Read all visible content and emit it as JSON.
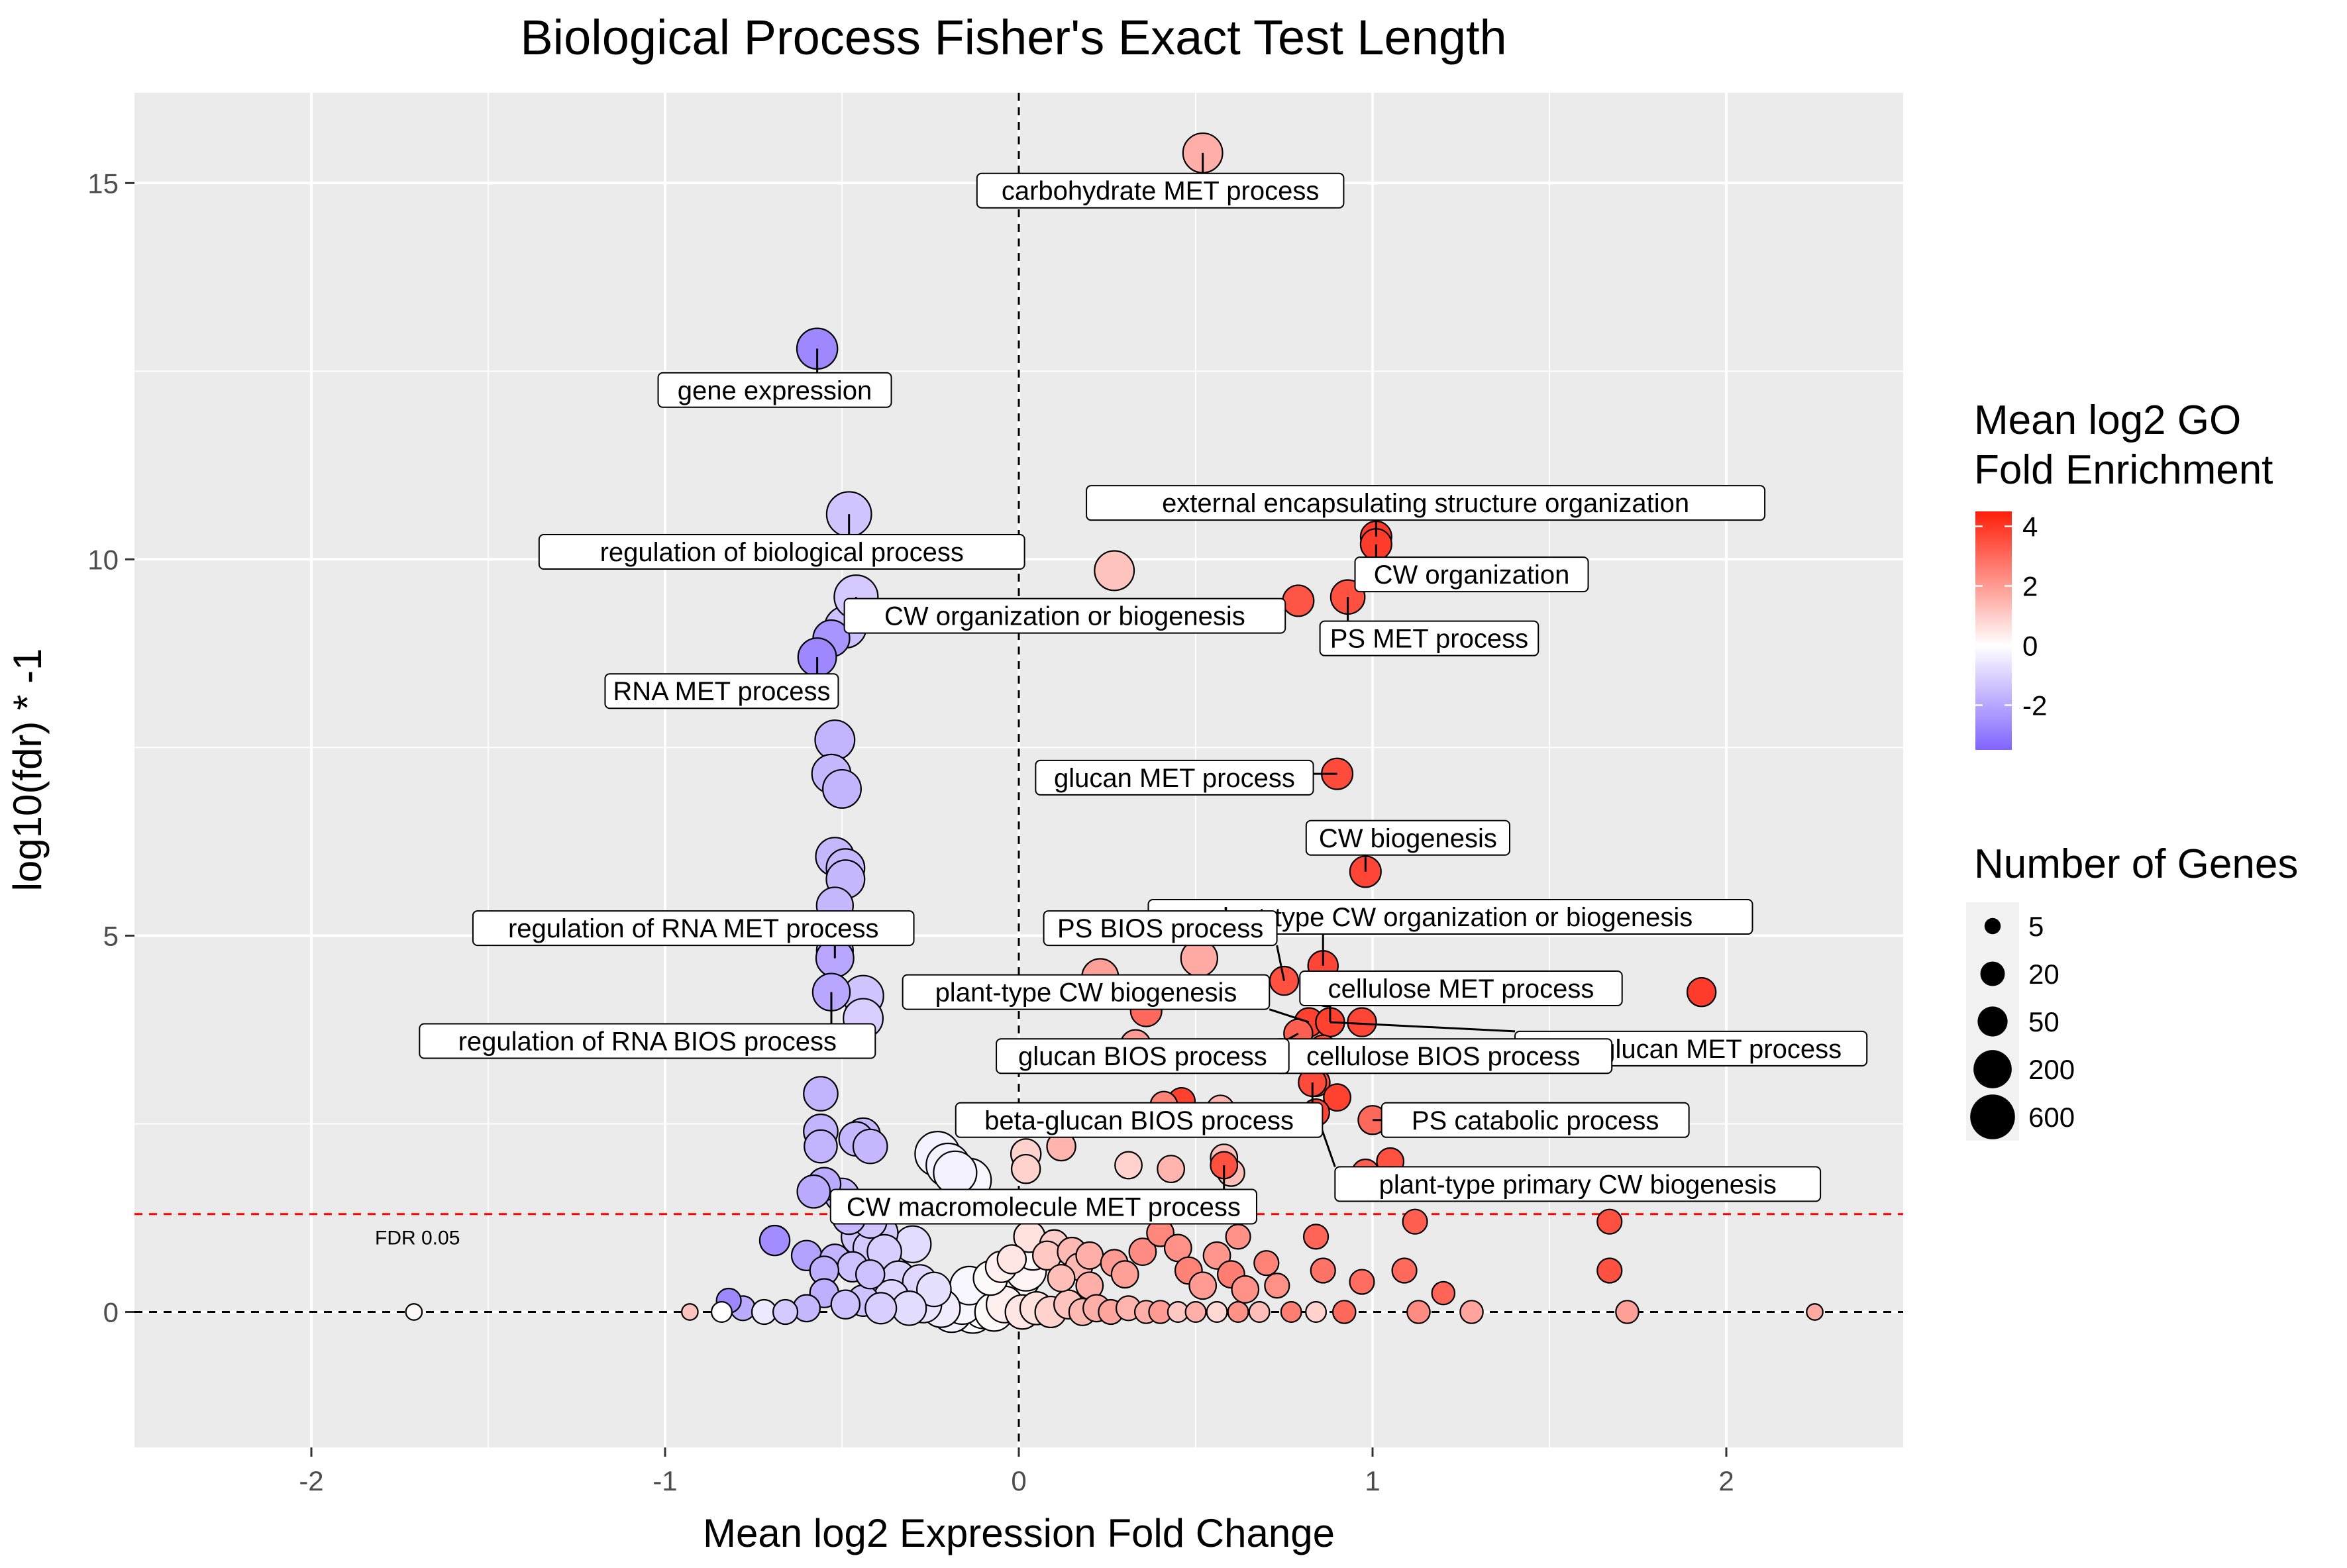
{
  "chart_data": {
    "type": "scatter",
    "title": "Biological Process Fisher's Exact Test Length",
    "xlabel": "Mean log2 Expression Fold Change",
    "ylabel": "log10(fdr) * -1",
    "xlim": [
      -2.5,
      2.5
    ],
    "ylim": [
      -1.8,
      16.2
    ],
    "x_ticks": [
      -2,
      -1,
      0,
      1,
      2
    ],
    "y_ticks": [
      0,
      5,
      10,
      15
    ],
    "grid": true,
    "background": "#ebebeb",
    "fdr_line": {
      "y": 1.301,
      "label": "FDR 0.05",
      "color": "#ff0000"
    },
    "color_legend": {
      "title_line1": "Mean log2 GO",
      "title_line2": "Fold Enrichment",
      "ticks": [
        "4",
        "2",
        "0",
        "-2"
      ],
      "range": [
        -3.5,
        4.5
      ],
      "low_color": "#8264ff",
      "mid_color": "#ffffff",
      "high_color": "#ff1e0a"
    },
    "size_legend": {
      "title": "Number of Genes",
      "items": [
        {
          "label": "5",
          "n": 5
        },
        {
          "label": "20",
          "n": 20
        },
        {
          "label": "50",
          "n": 50
        },
        {
          "label": "200",
          "n": 200
        },
        {
          "label": "600",
          "n": 600
        }
      ]
    },
    "labeled_points": [
      {
        "label": "carbohydrate MET process",
        "x": 0.52,
        "y": 15.4,
        "c": 1.6,
        "n": 250,
        "lx": 0.4,
        "ly": 14.9
      },
      {
        "label": "gene expression",
        "x": -0.57,
        "y": 12.8,
        "c": -2.7,
        "n": 300,
        "lx": -0.69,
        "ly": 12.25
      },
      {
        "label": "regulation of biological process",
        "x": -0.48,
        "y": 10.6,
        "c": -1.3,
        "n": 600,
        "lx": -0.67,
        "ly": 10.1
      },
      {
        "label": "external encapsulating structure organization",
        "x": 1.01,
        "y": 10.3,
        "c": 3.9,
        "n": 60,
        "lx": 1.15,
        "ly": 10.75
      },
      {
        "label": "CW organization",
        "x": 1.01,
        "y": 10.2,
        "c": 3.9,
        "n": 60,
        "lx": 1.28,
        "ly": 9.8
      },
      {
        "label": "CW organization or biogenesis",
        "x": -0.46,
        "y": 9.5,
        "c": -1.2,
        "n": 500,
        "lx": 0.13,
        "ly": 9.25
      },
      {
        "label": "PS MET process",
        "x": 0.93,
        "y": 9.5,
        "c": 3.5,
        "n": 100,
        "lx": 1.16,
        "ly": 8.95
      },
      {
        "label": "RNA MET process",
        "x": -0.57,
        "y": 8.7,
        "c": -2.7,
        "n": 200,
        "lx": -0.84,
        "ly": 8.25
      },
      {
        "label": "glucan MET process",
        "x": 0.9,
        "y": 7.15,
        "c": 3.6,
        "n": 60,
        "lx": 0.44,
        "ly": 7.1
      },
      {
        "label": "CW biogenesis",
        "x": 0.98,
        "y": 5.85,
        "c": 3.7,
        "n": 60,
        "lx": 1.1,
        "ly": 6.3
      },
      {
        "label": "plant-type CW organization or biogenesis",
        "x": 0.86,
        "y": 4.6,
        "c": 3.7,
        "n": 50,
        "lx": 1.22,
        "ly": 5.25
      },
      {
        "label": "PS BIOS process",
        "x": 0.75,
        "y": 4.4,
        "c": 3.5,
        "n": 40,
        "lx": 0.4,
        "ly": 5.1
      },
      {
        "label": "regulation of RNA MET process",
        "x": -0.52,
        "y": 4.7,
        "c": -2.0,
        "n": 180,
        "lx": -0.92,
        "ly": 5.1
      },
      {
        "label": "cellulose MET process",
        "x": 0.88,
        "y": 3.85,
        "c": 3.8,
        "n": 40,
        "lx": 1.25,
        "ly": 4.3
      },
      {
        "label": "plant-type CW biogenesis",
        "x": 0.82,
        "y": 3.85,
        "c": 3.8,
        "n": 40,
        "lx": 0.19,
        "ly": 4.25
      },
      {
        "label": "regulation of RNA BIOS process",
        "x": -0.53,
        "y": 4.25,
        "c": -2.0,
        "n": 170,
        "lx": -1.05,
        "ly": 3.6
      },
      {
        "label": "beta-glucan MET process",
        "x": 0.88,
        "y": 3.85,
        "c": 3.8,
        "n": 40,
        "lx": 1.9,
        "ly": 3.5
      },
      {
        "label": "cellulose BIOS process",
        "x": 0.86,
        "y": 3.5,
        "c": 3.6,
        "n": 30,
        "lx": 1.2,
        "ly": 3.4
      },
      {
        "label": "glucan BIOS process",
        "x": 0.79,
        "y": 3.7,
        "c": 3.2,
        "n": 40,
        "lx": 0.35,
        "ly": 3.4
      },
      {
        "label": "beta-glucan BIOS process",
        "x": 0.83,
        "y": 3.05,
        "c": 3.6,
        "n": 35,
        "lx": 0.34,
        "ly": 2.55
      },
      {
        "label": "PS catabolic process",
        "x": 1.0,
        "y": 2.55,
        "c": 3.0,
        "n": 40,
        "lx": 1.46,
        "ly": 2.55
      },
      {
        "label": "plant-type primary CW biogenesis",
        "x": 0.84,
        "y": 2.65,
        "c": 3.7,
        "n": 30,
        "lx": 1.58,
        "ly": 1.7
      },
      {
        "label": "CW macromolecule MET process",
        "x": 0.58,
        "y": 1.95,
        "c": 3.5,
        "n": 30,
        "lx": 0.07,
        "ly": 1.4
      }
    ],
    "points": [
      {
        "x": 0.27,
        "y": 9.85,
        "c": 1.2,
        "n": 250
      },
      {
        "x": 0.79,
        "y": 9.45,
        "c": 3.4,
        "n": 60
      },
      {
        "x": -0.53,
        "y": 8.95,
        "c": -2.4,
        "n": 150
      },
      {
        "x": -0.49,
        "y": 9.1,
        "c": -1.4,
        "n": 350
      },
      {
        "x": -0.52,
        "y": 7.6,
        "c": -1.7,
        "n": 250
      },
      {
        "x": -0.53,
        "y": 7.15,
        "c": -1.6,
        "n": 220
      },
      {
        "x": -0.5,
        "y": 6.95,
        "c": -1.7,
        "n": 200
      },
      {
        "x": -0.52,
        "y": 6.05,
        "c": -1.6,
        "n": 200
      },
      {
        "x": -0.49,
        "y": 5.9,
        "c": -1.6,
        "n": 200
      },
      {
        "x": -0.49,
        "y": 5.75,
        "c": -1.6,
        "n": 200
      },
      {
        "x": -0.52,
        "y": 5.4,
        "c": -1.6,
        "n": 150
      },
      {
        "x": -0.52,
        "y": 4.8,
        "c": -1.9,
        "n": 150
      },
      {
        "x": -0.44,
        "y": 4.2,
        "c": -1.3,
        "n": 300
      },
      {
        "x": -0.44,
        "y": 3.9,
        "c": -1.1,
        "n": 250
      },
      {
        "x": 0.51,
        "y": 4.7,
        "c": 1.7,
        "n": 150
      },
      {
        "x": 0.75,
        "y": 5.25,
        "c": 2.5,
        "n": 40
      },
      {
        "x": 0.23,
        "y": 4.45,
        "c": 1.9,
        "n": 150
      },
      {
        "x": 0.36,
        "y": 4.0,
        "c": 3.0,
        "n": 60
      },
      {
        "x": 0.87,
        "y": 4.25,
        "c": 3.0,
        "n": 40
      },
      {
        "x": 0.97,
        "y": 3.85,
        "c": 3.7,
        "n": 40
      },
      {
        "x": 1.93,
        "y": 4.25,
        "c": 3.9,
        "n": 40
      },
      {
        "x": 0.84,
        "y": 3.75,
        "c": 2.5,
        "n": 50
      },
      {
        "x": 0.33,
        "y": 3.55,
        "c": 2.0,
        "n": 50
      },
      {
        "x": 0.46,
        "y": 2.8,
        "c": 3.8,
        "n": 30
      },
      {
        "x": 0.41,
        "y": 2.75,
        "c": 2.5,
        "n": 30
      },
      {
        "x": 0.84,
        "y": 3.05,
        "c": 3.6,
        "n": 35
      },
      {
        "x": 0.9,
        "y": 2.85,
        "c": 3.8,
        "n": 30
      },
      {
        "x": 0.57,
        "y": 2.7,
        "c": 1.5,
        "n": 30
      },
      {
        "x": 1.05,
        "y": 2.0,
        "c": 3.5,
        "n": 30
      },
      {
        "x": 0.98,
        "y": 1.85,
        "c": 3.2,
        "n": 30
      },
      {
        "x": -0.56,
        "y": 2.9,
        "c": -1.7,
        "n": 100
      },
      {
        "x": -0.56,
        "y": 2.4,
        "c": -1.7,
        "n": 100
      },
      {
        "x": -0.44,
        "y": 2.35,
        "c": -1.6,
        "n": 100
      },
      {
        "x": -0.46,
        "y": 2.3,
        "c": -1.6,
        "n": 100
      },
      {
        "x": -0.56,
        "y": 2.2,
        "c": -1.7,
        "n": 80
      },
      {
        "x": -0.42,
        "y": 2.2,
        "c": -1.6,
        "n": 100
      },
      {
        "x": -0.23,
        "y": 2.1,
        "c": -0.3,
        "n": 600
      },
      {
        "x": -0.2,
        "y": 1.95,
        "c": -0.3,
        "n": 500
      },
      {
        "x": -0.18,
        "y": 1.85,
        "c": -0.3,
        "n": 450
      },
      {
        "x": -0.14,
        "y": 1.75,
        "c": -0.2,
        "n": 500
      },
      {
        "x": 0.02,
        "y": 2.1,
        "c": 0.9,
        "n": 50
      },
      {
        "x": 0.12,
        "y": 2.2,
        "c": 1.5,
        "n": 40
      },
      {
        "x": 0.02,
        "y": 1.9,
        "c": 0.9,
        "n": 40
      },
      {
        "x": 0.31,
        "y": 1.95,
        "c": 0.9,
        "n": 30
      },
      {
        "x": 0.43,
        "y": 1.9,
        "c": 1.5,
        "n": 30
      },
      {
        "x": 0.58,
        "y": 2.05,
        "c": 1.3,
        "n": 30
      },
      {
        "x": 0.6,
        "y": 1.85,
        "c": 1.3,
        "n": 30
      },
      {
        "x": -0.55,
        "y": 1.7,
        "c": -1.9,
        "n": 80
      },
      {
        "x": -0.58,
        "y": 1.6,
        "c": -1.9,
        "n": 80
      },
      {
        "x": -0.5,
        "y": 1.55,
        "c": -1.6,
        "n": 100
      },
      {
        "x": -0.42,
        "y": 1.2,
        "c": -1.3,
        "n": 80
      },
      {
        "x": -0.48,
        "y": 1.25,
        "c": -1.6,
        "n": 80
      },
      {
        "x": -0.45,
        "y": 1.0,
        "c": -1.3,
        "n": 150
      },
      {
        "x": -0.39,
        "y": 1.05,
        "c": -1.2,
        "n": 100
      },
      {
        "x": -0.3,
        "y": 0.9,
        "c": -0.8,
        "n": 150
      },
      {
        "x": -0.42,
        "y": 0.85,
        "c": -1.2,
        "n": 100
      },
      {
        "x": -0.38,
        "y": 0.8,
        "c": -1.1,
        "n": 100
      },
      {
        "x": -0.69,
        "y": 0.95,
        "c": -2.6,
        "n": 50
      },
      {
        "x": -0.6,
        "y": 0.75,
        "c": -2.1,
        "n": 50
      },
      {
        "x": -0.52,
        "y": 0.7,
        "c": -1.7,
        "n": 50
      },
      {
        "x": -0.47,
        "y": 0.6,
        "c": -1.4,
        "n": 50
      },
      {
        "x": -0.55,
        "y": 0.55,
        "c": -1.8,
        "n": 40
      },
      {
        "x": -0.42,
        "y": 0.5,
        "c": -1.4,
        "n": 40
      },
      {
        "x": -0.34,
        "y": 0.45,
        "c": -1.0,
        "n": 100
      },
      {
        "x": -0.28,
        "y": 0.4,
        "c": -0.9,
        "n": 100
      },
      {
        "x": -0.24,
        "y": 0.3,
        "c": -0.7,
        "n": 100
      },
      {
        "x": -0.14,
        "y": 0.35,
        "c": -0.2,
        "n": 200
      },
      {
        "x": -0.08,
        "y": 0.45,
        "c": 0.1,
        "n": 100
      },
      {
        "x": -0.05,
        "y": 0.6,
        "c": 0.3,
        "n": 60
      },
      {
        "x": -0.02,
        "y": 0.7,
        "c": 0.5,
        "n": 40
      },
      {
        "x": 0.02,
        "y": 0.55,
        "c": 0.2,
        "n": 300
      },
      {
        "x": 0.0,
        "y": 0.45,
        "c": 0.1,
        "n": 400
      },
      {
        "x": 0.04,
        "y": 0.8,
        "c": 0.1,
        "n": 150
      },
      {
        "x": 0.03,
        "y": 1.0,
        "c": 0.6,
        "n": 60
      },
      {
        "x": 0.1,
        "y": 0.9,
        "c": 1.0,
        "n": 40
      },
      {
        "x": 0.08,
        "y": 0.75,
        "c": 1.1,
        "n": 40
      },
      {
        "x": 0.15,
        "y": 0.8,
        "c": 1.4,
        "n": 40
      },
      {
        "x": 0.17,
        "y": 0.6,
        "c": 1.4,
        "n": 30
      },
      {
        "x": 0.2,
        "y": 0.75,
        "c": 1.6,
        "n": 30
      },
      {
        "x": 0.12,
        "y": 0.45,
        "c": 1.3,
        "n": 30
      },
      {
        "x": 0.2,
        "y": 0.35,
        "c": 1.6,
        "n": 30
      },
      {
        "x": 0.27,
        "y": 0.65,
        "c": 2.0,
        "n": 30
      },
      {
        "x": 0.3,
        "y": 0.5,
        "c": 1.9,
        "n": 30
      },
      {
        "x": 0.35,
        "y": 0.8,
        "c": 2.3,
        "n": 30
      },
      {
        "x": 0.4,
        "y": 1.05,
        "c": 2.4,
        "n": 30
      },
      {
        "x": 0.45,
        "y": 0.85,
        "c": 2.2,
        "n": 30
      },
      {
        "x": 0.48,
        "y": 0.55,
        "c": 2.5,
        "n": 30
      },
      {
        "x": 0.52,
        "y": 0.35,
        "c": 2.0,
        "n": 30
      },
      {
        "x": 0.56,
        "y": 0.75,
        "c": 2.1,
        "n": 30
      },
      {
        "x": 0.6,
        "y": 0.5,
        "c": 2.6,
        "n": 30
      },
      {
        "x": 0.64,
        "y": 0.3,
        "c": 2.2,
        "n": 30
      },
      {
        "x": 0.62,
        "y": 1.0,
        "c": 2.2,
        "n": 20
      },
      {
        "x": 0.7,
        "y": 0.65,
        "c": 2.5,
        "n": 20
      },
      {
        "x": 0.73,
        "y": 0.35,
        "c": 2.2,
        "n": 20
      },
      {
        "x": 0.84,
        "y": 1.0,
        "c": 3.1,
        "n": 20
      },
      {
        "x": 0.86,
        "y": 0.55,
        "c": 2.8,
        "n": 20
      },
      {
        "x": 0.97,
        "y": 0.4,
        "c": 2.9,
        "n": 20
      },
      {
        "x": 1.09,
        "y": 0.55,
        "c": 3.0,
        "n": 20
      },
      {
        "x": 1.12,
        "y": 1.2,
        "c": 3.2,
        "n": 20
      },
      {
        "x": 1.2,
        "y": 0.25,
        "c": 3.1,
        "n": 15
      },
      {
        "x": 1.67,
        "y": 1.2,
        "c": 3.5,
        "n": 20
      },
      {
        "x": 1.67,
        "y": 0.55,
        "c": 3.5,
        "n": 20
      },
      {
        "x": 0.92,
        "y": 0.0,
        "c": 3.0,
        "n": 15
      },
      {
        "x": 1.13,
        "y": 0.0,
        "c": 2.3,
        "n": 15
      },
      {
        "x": 1.28,
        "y": 0.0,
        "c": 1.8,
        "n": 15
      },
      {
        "x": 1.72,
        "y": 0.0,
        "c": 1.9,
        "n": 15
      },
      {
        "x": 2.25,
        "y": 0.0,
        "c": 1.7,
        "n": 5
      },
      {
        "x": -1.71,
        "y": 0.0,
        "c": 0.1,
        "n": 5
      },
      {
        "x": -0.93,
        "y": 0.0,
        "c": 1.2,
        "n": 5
      },
      {
        "x": -0.84,
        "y": 0.0,
        "c": 0.0,
        "n": 10
      },
      {
        "x": -0.78,
        "y": 0.05,
        "c": -1.9,
        "n": 20
      },
      {
        "x": -0.82,
        "y": 0.15,
        "c": -2.7,
        "n": 20
      },
      {
        "x": -0.72,
        "y": 0.0,
        "c": -0.5,
        "n": 20
      },
      {
        "x": -0.66,
        "y": 0.0,
        "c": -1.2,
        "n": 20
      },
      {
        "x": -0.6,
        "y": 0.05,
        "c": -1.6,
        "n": 30
      },
      {
        "x": -0.55,
        "y": 0.25,
        "c": -1.8,
        "n": 40
      },
      {
        "x": -0.49,
        "y": 0.1,
        "c": -1.4,
        "n": 40
      },
      {
        "x": -0.44,
        "y": 0.15,
        "c": -1.4,
        "n": 60
      },
      {
        "x": -0.39,
        "y": 0.05,
        "c": -1.1,
        "n": 60
      },
      {
        "x": -0.36,
        "y": 0.2,
        "c": -0.9,
        "n": 100
      },
      {
        "x": -0.31,
        "y": 0.05,
        "c": -0.8,
        "n": 100
      },
      {
        "x": -0.27,
        "y": 0.1,
        "c": -0.6,
        "n": 150
      },
      {
        "x": -0.22,
        "y": 0.05,
        "c": -0.4,
        "n": 200
      },
      {
        "x": -0.19,
        "y": 0.0,
        "c": -0.3,
        "n": 300
      },
      {
        "x": -0.16,
        "y": 0.1,
        "c": -0.2,
        "n": 250
      },
      {
        "x": -0.13,
        "y": 0.0,
        "c": -0.1,
        "n": 400
      },
      {
        "x": -0.1,
        "y": 0.05,
        "c": 0.0,
        "n": 300
      },
      {
        "x": -0.07,
        "y": 0.0,
        "c": 0.1,
        "n": 200
      },
      {
        "x": -0.04,
        "y": 0.1,
        "c": 0.3,
        "n": 150
      },
      {
        "x": 0.01,
        "y": 0.0,
        "c": 0.5,
        "n": 100
      },
      {
        "x": 0.05,
        "y": 0.05,
        "c": 0.6,
        "n": 80
      },
      {
        "x": 0.09,
        "y": 0.0,
        "c": 0.9,
        "n": 60
      },
      {
        "x": 0.14,
        "y": 0.1,
        "c": 1.2,
        "n": 40
      },
      {
        "x": 0.18,
        "y": 0.0,
        "c": 1.4,
        "n": 30
      },
      {
        "x": 0.22,
        "y": 0.05,
        "c": 1.6,
        "n": 30
      },
      {
        "x": 0.26,
        "y": 0.0,
        "c": 1.8,
        "n": 20
      },
      {
        "x": 0.31,
        "y": 0.05,
        "c": 1.5,
        "n": 20
      },
      {
        "x": 0.36,
        "y": 0.0,
        "c": 1.6,
        "n": 15
      },
      {
        "x": 0.4,
        "y": 0.0,
        "c": 2.0,
        "n": 15
      },
      {
        "x": 0.45,
        "y": 0.0,
        "c": 1.1,
        "n": 10
      },
      {
        "x": 0.5,
        "y": 0.0,
        "c": 1.6,
        "n": 10
      },
      {
        "x": 0.56,
        "y": 0.0,
        "c": 0.8,
        "n": 10
      },
      {
        "x": 0.62,
        "y": 0.0,
        "c": 2.2,
        "n": 10
      },
      {
        "x": 0.68,
        "y": 0.0,
        "c": 1.3,
        "n": 10
      },
      {
        "x": 0.77,
        "y": 0.0,
        "c": 2.6,
        "n": 10
      },
      {
        "x": 0.84,
        "y": 0.0,
        "c": 0.9,
        "n": 10
      }
    ]
  }
}
